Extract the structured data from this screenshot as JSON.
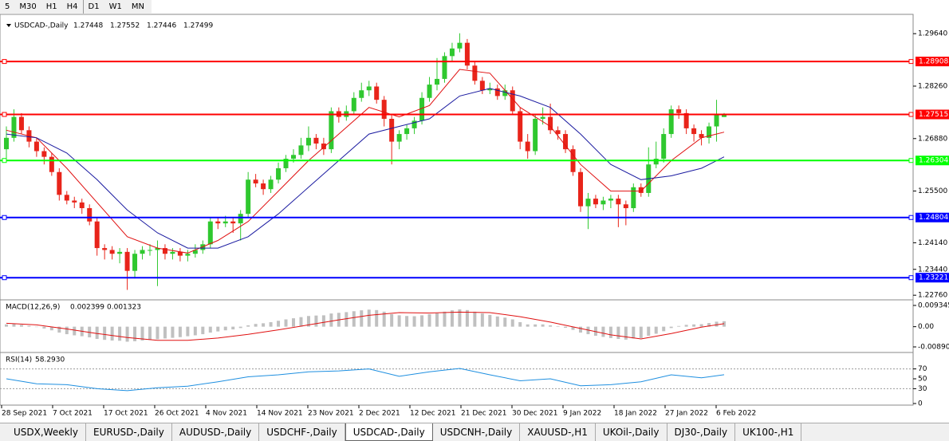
{
  "toolbar": [
    "5",
    "M30",
    "H1",
    "H4",
    "D1",
    "W1",
    "MN"
  ],
  "chart_data": {
    "type": "candlestick",
    "title": "USDCAD-,Daily",
    "ohlc_shown": [
      1.27448,
      1.27552,
      1.27446,
      1.27499
    ],
    "up_color": "#2fc82f",
    "down_color": "#e8241a",
    "candles": [
      [
        1.266,
        1.272,
        1.263,
        1.269
      ],
      [
        1.269,
        1.2765,
        1.268,
        1.2745
      ],
      [
        1.2745,
        1.2755,
        1.27,
        1.271
      ],
      [
        1.271,
        1.272,
        1.2665,
        1.268
      ],
      [
        1.268,
        1.269,
        1.264,
        1.2655
      ],
      [
        1.2655,
        1.2665,
        1.262,
        1.264
      ],
      [
        1.264,
        1.265,
        1.259,
        1.26
      ],
      [
        1.26,
        1.261,
        1.2525,
        1.254
      ],
      [
        1.254,
        1.255,
        1.2515,
        1.2525
      ],
      [
        1.2525,
        1.2535,
        1.2505,
        1.252
      ],
      [
        1.252,
        1.253,
        1.249,
        1.2505
      ],
      [
        1.2505,
        1.2515,
        1.246,
        1.247
      ],
      [
        1.247,
        1.248,
        1.238,
        1.24
      ],
      [
        1.24,
        1.241,
        1.237,
        1.2395
      ],
      [
        1.2395,
        1.2405,
        1.237,
        1.2385
      ],
      [
        1.2385,
        1.24,
        1.236,
        1.239
      ],
      [
        1.239,
        1.24,
        1.229,
        1.234
      ],
      [
        1.234,
        1.2395,
        1.232,
        1.2385
      ],
      [
        1.2385,
        1.2405,
        1.237,
        1.2395
      ],
      [
        1.2395,
        1.241,
        1.238,
        1.2395
      ],
      [
        1.2395,
        1.242,
        1.23,
        1.24
      ],
      [
        1.24,
        1.241,
        1.237,
        1.2385
      ],
      [
        1.2385,
        1.24,
        1.237,
        1.239
      ],
      [
        1.239,
        1.24,
        1.2365,
        1.238
      ],
      [
        1.238,
        1.2395,
        1.2365,
        1.2385
      ],
      [
        1.2385,
        1.241,
        1.2375,
        1.2395
      ],
      [
        1.2395,
        1.242,
        1.2385,
        1.241
      ],
      [
        1.241,
        1.248,
        1.24,
        1.247
      ],
      [
        1.247,
        1.248,
        1.245,
        1.2465
      ],
      [
        1.2465,
        1.2485,
        1.2455,
        1.247
      ],
      [
        1.247,
        1.248,
        1.244,
        1.2465
      ],
      [
        1.2465,
        1.25,
        1.242,
        1.249
      ],
      [
        1.249,
        1.26,
        1.248,
        1.258
      ],
      [
        1.258,
        1.2595,
        1.256,
        1.257
      ],
      [
        1.257,
        1.258,
        1.254,
        1.2555
      ],
      [
        1.2555,
        1.259,
        1.2545,
        1.258
      ],
      [
        1.258,
        1.2625,
        1.257,
        1.261
      ],
      [
        1.261,
        1.2645,
        1.26,
        1.2635
      ],
      [
        1.2635,
        1.266,
        1.2625,
        1.2645
      ],
      [
        1.2645,
        1.269,
        1.2635,
        1.267
      ],
      [
        1.267,
        1.272,
        1.2655,
        1.269
      ],
      [
        1.269,
        1.27,
        1.266,
        1.2675
      ],
      [
        1.2675,
        1.269,
        1.2645,
        1.266
      ],
      [
        1.266,
        1.277,
        1.265,
        1.276
      ],
      [
        1.276,
        1.277,
        1.273,
        1.2745
      ],
      [
        1.2745,
        1.2775,
        1.2735,
        1.276
      ],
      [
        1.276,
        1.281,
        1.275,
        1.2795
      ],
      [
        1.2795,
        1.2835,
        1.2785,
        1.2815
      ],
      [
        1.2815,
        1.284,
        1.28,
        1.2825
      ],
      [
        1.2825,
        1.2835,
        1.278,
        1.279
      ],
      [
        1.279,
        1.28,
        1.272,
        1.274
      ],
      [
        1.274,
        1.275,
        1.262,
        1.268
      ],
      [
        1.268,
        1.271,
        1.266,
        1.27
      ],
      [
        1.27,
        1.2725,
        1.2685,
        1.2715
      ],
      [
        1.2715,
        1.2745,
        1.27,
        1.2735
      ],
      [
        1.2735,
        1.281,
        1.2725,
        1.2795
      ],
      [
        1.2795,
        1.285,
        1.2785,
        1.283
      ],
      [
        1.283,
        1.29,
        1.2815,
        1.2845
      ],
      [
        1.2845,
        1.2915,
        1.2835,
        1.2905
      ],
      [
        1.2905,
        1.294,
        1.289,
        1.2925
      ],
      [
        1.2925,
        1.2965,
        1.2915,
        1.294
      ],
      [
        1.294,
        1.295,
        1.287,
        1.288
      ],
      [
        1.288,
        1.289,
        1.283,
        1.284
      ],
      [
        1.284,
        1.285,
        1.2805,
        1.2815
      ],
      [
        1.2815,
        1.2835,
        1.2805,
        1.282
      ],
      [
        1.282,
        1.283,
        1.279,
        1.28
      ],
      [
        1.28,
        1.283,
        1.279,
        1.2815
      ],
      [
        1.2815,
        1.2825,
        1.275,
        1.276
      ],
      [
        1.276,
        1.277,
        1.266,
        1.268
      ],
      [
        1.268,
        1.27,
        1.2635,
        1.2655
      ],
      [
        1.2655,
        1.275,
        1.2645,
        1.274
      ],
      [
        1.274,
        1.277,
        1.2725,
        1.2745
      ],
      [
        1.2745,
        1.278,
        1.27,
        1.271
      ],
      [
        1.271,
        1.272,
        1.2685,
        1.27
      ],
      [
        1.27,
        1.271,
        1.265,
        1.266
      ],
      [
        1.266,
        1.267,
        1.259,
        1.26
      ],
      [
        1.26,
        1.261,
        1.2495,
        1.251
      ],
      [
        1.251,
        1.2545,
        1.245,
        1.253
      ],
      [
        1.253,
        1.254,
        1.2505,
        1.2515
      ],
      [
        1.2515,
        1.2535,
        1.25,
        1.2525
      ],
      [
        1.2525,
        1.254,
        1.2505,
        1.253
      ],
      [
        1.253,
        1.254,
        1.2455,
        1.2515
      ],
      [
        1.2515,
        1.2525,
        1.246,
        1.2505
      ],
      [
        1.2505,
        1.257,
        1.2495,
        1.256
      ],
      [
        1.256,
        1.257,
        1.2535,
        1.2545
      ],
      [
        1.2545,
        1.2665,
        1.2535,
        1.262
      ],
      [
        1.262,
        1.268,
        1.261,
        1.2635
      ],
      [
        1.2635,
        1.2715,
        1.2625,
        1.27
      ],
      [
        1.27,
        1.2775,
        1.269,
        1.2765
      ],
      [
        1.2765,
        1.2775,
        1.274,
        1.2755
      ],
      [
        1.2755,
        1.2765,
        1.27,
        1.2715
      ],
      [
        1.2715,
        1.2725,
        1.268,
        1.27
      ],
      [
        1.27,
        1.271,
        1.267,
        1.269
      ],
      [
        1.269,
        1.273,
        1.2675,
        1.272
      ],
      [
        1.272,
        1.279,
        1.268,
        1.275
      ],
      [
        1.27448,
        1.27552,
        1.27446,
        1.27499
      ]
    ],
    "moving_averages": [
      {
        "color": "#e01010",
        "x": [
          0,
          4,
          8,
          12,
          16,
          20,
          24,
          28,
          32,
          36,
          40,
          44,
          48,
          52,
          56,
          60,
          64,
          68,
          72,
          76,
          80,
          84,
          88,
          92,
          95
        ],
        "values": [
          1.271,
          1.269,
          1.261,
          1.252,
          1.243,
          1.24,
          1.2387,
          1.242,
          1.247,
          1.255,
          1.263,
          1.27,
          1.277,
          1.2745,
          1.2775,
          1.287,
          1.286,
          1.277,
          1.272,
          1.262,
          1.255,
          1.255,
          1.263,
          1.269,
          1.2705
        ]
      },
      {
        "color": "#1a1aa0",
        "x": [
          0,
          4,
          8,
          12,
          16,
          20,
          24,
          28,
          32,
          36,
          40,
          44,
          48,
          52,
          56,
          60,
          64,
          68,
          72,
          76,
          80,
          84,
          88,
          92,
          95
        ],
        "values": [
          1.27,
          1.269,
          1.265,
          1.258,
          1.25,
          1.244,
          1.24,
          1.24,
          1.243,
          1.249,
          1.256,
          1.263,
          1.27,
          1.272,
          1.274,
          1.28,
          1.282,
          1.28,
          1.277,
          1.27,
          1.262,
          1.258,
          1.259,
          1.261,
          1.264
        ]
      }
    ],
    "levels": [
      {
        "value": 1.28908,
        "color": "#ff0000"
      },
      {
        "value": 1.27515,
        "color": "#ff0000"
      },
      {
        "value": 1.26304,
        "color": "#00ff00"
      },
      {
        "value": 1.24804,
        "color": "#0000ff"
      },
      {
        "value": 1.23221,
        "color": "#0000ff"
      }
    ],
    "ylim": [
      1.2268,
      1.2998
    ],
    "yticks": [
      {
        "value": 1.2964,
        "label": "1.29640"
      },
      {
        "value": 1.2826,
        "label": "1.28260"
      },
      {
        "value": 1.2688,
        "label": "1.26880"
      },
      {
        "value": 1.255,
        "label": "1.25500"
      },
      {
        "value": 1.2414,
        "label": "1.24140"
      },
      {
        "value": 1.2344,
        "label": "1.23440"
      },
      {
        "value": 1.2276,
        "label": "1.22760"
      }
    ],
    "x_labels": [
      "28 Sep 2021",
      "7 Oct 2021",
      "17 Oct 2021",
      "26 Oct 2021",
      "4 Nov 2021",
      "14 Nov 2021",
      "23 Nov 2021",
      "2 Dec 2021",
      "12 Dec 2021",
      "21 Dec 2021",
      "30 Dec 2021",
      "9 Jan 2022",
      "18 Jan 2022",
      "27 Jan 2022",
      "6 Feb 2022"
    ]
  },
  "macd": {
    "title": "MACD(12,26,9)",
    "current": [
      0.002399,
      0.001323
    ],
    "histogram_color": "#c0c0c0",
    "signal_color": "#e01010",
    "histogram": [
      0.001,
      0.0012,
      0.0008,
      0.0004,
      0.0,
      -0.0008,
      -0.0016,
      -0.0026,
      -0.0033,
      -0.0038,
      -0.0042,
      -0.0047,
      -0.0054,
      -0.0058,
      -0.0061,
      -0.0062,
      -0.0066,
      -0.0064,
      -0.0061,
      -0.0058,
      -0.0055,
      -0.0052,
      -0.0049,
      -0.0046,
      -0.0042,
      -0.0038,
      -0.0033,
      -0.0026,
      -0.0021,
      -0.0016,
      -0.0012,
      -0.0006,
      0.0006,
      0.0012,
      0.0015,
      0.002,
      0.0026,
      0.0032,
      0.0037,
      0.0042,
      0.0047,
      0.0049,
      0.005,
      0.0058,
      0.0061,
      0.0064,
      0.0068,
      0.0072,
      0.0075,
      0.0073,
      0.0066,
      0.0055,
      0.005,
      0.0047,
      0.0046,
      0.005,
      0.0055,
      0.0059,
      0.0066,
      0.0072,
      0.0076,
      0.0073,
      0.0066,
      0.0058,
      0.0052,
      0.0045,
      0.004,
      0.0032,
      0.002,
      0.001,
      0.001,
      0.001,
      0.0006,
      0.0002,
      -0.0005,
      -0.0014,
      -0.0026,
      -0.0033,
      -0.004,
      -0.0045,
      -0.005,
      -0.0054,
      -0.0057,
      -0.0052,
      -0.005,
      -0.004,
      -0.0031,
      -0.002,
      -0.0006,
      0.0003,
      0.0008,
      0.001,
      0.0011,
      0.0016,
      0.0022,
      0.0024
    ],
    "signal_x": [
      0,
      4,
      8,
      12,
      16,
      20,
      24,
      28,
      32,
      36,
      40,
      44,
      48,
      52,
      56,
      60,
      64,
      68,
      72,
      76,
      80,
      84,
      88,
      92,
      95
    ],
    "signal": [
      0.0015,
      0.0008,
      -0.001,
      -0.003,
      -0.0048,
      -0.006,
      -0.006,
      -0.005,
      -0.0034,
      -0.0014,
      0.0008,
      0.003,
      0.005,
      0.0062,
      0.006,
      0.0064,
      0.0062,
      0.0044,
      0.002,
      -0.0008,
      -0.0036,
      -0.0054,
      -0.003,
      -0.0002,
      0.0013
    ],
    "ylim": [
      -0.01065,
      0.0111
    ],
    "yticks": [
      0.009345,
      {
        "value": 0,
        "label": "0.00"
      },
      {
        "value": -0.0089,
        "label": "-0.00890"
      }
    ]
  },
  "rsi": {
    "title": "RSI(14)",
    "current": {
      "value": 58.293,
      "label": "58.2930"
    },
    "color": "#1e8fe0",
    "x": [
      0,
      4,
      8,
      12,
      16,
      20,
      24,
      28,
      32,
      36,
      40,
      44,
      48,
      52,
      56,
      60,
      64,
      68,
      72,
      76,
      80,
      84,
      88,
      92,
      95
    ],
    "values": [
      50,
      40,
      38,
      30,
      26,
      32,
      35,
      44,
      54,
      58,
      64,
      66,
      70,
      55,
      64,
      71,
      58,
      46,
      50,
      36,
      38,
      44,
      58,
      52,
      58.293
    ],
    "levels": [
      70,
      30
    ],
    "ylim": [
      0,
      100
    ],
    "yticks": [
      70,
      50,
      30,
      0
    ]
  },
  "tabs": [
    "USDX,Weekly",
    "EURUSD-,Daily",
    "AUDUSD-,Daily",
    "USDCHF-,Daily",
    "USDCAD-,Daily",
    "USDCNH-,Daily",
    "XAUUSD-,H1",
    "UKOil-,Daily",
    "DJ30-,Daily",
    "UK100-,H1"
  ],
  "active_tab": 4
}
